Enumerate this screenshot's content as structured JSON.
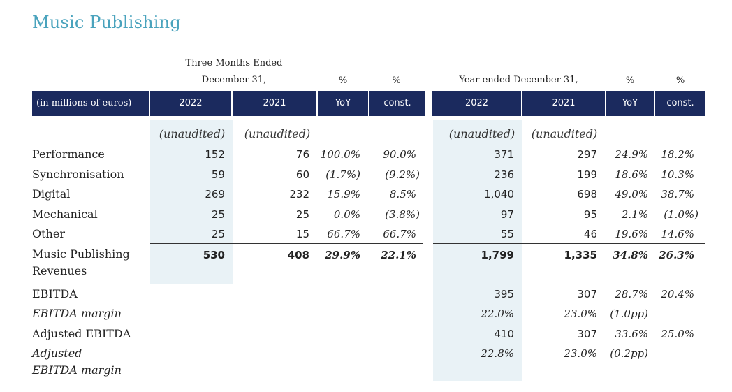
{
  "title": "Music Publishing",
  "header": {
    "three_months_l1": "Three Months Ended",
    "three_months_l2": "December 31,",
    "year_ended": "Year ended December 31,",
    "pct_symbol": "%"
  },
  "band": {
    "unit": "(in millions of euros)",
    "q_2022": "2022",
    "q_2021": "2021",
    "q_yoy": "YoY",
    "q_const": "const.",
    "y_2022": "2022",
    "y_2021": "2021",
    "y_yoy": "YoY",
    "y_const": "const."
  },
  "unaudited": "(unaudited)",
  "rows": [
    {
      "label": "Performance",
      "q22": "152",
      "q21": "76",
      "qyoy": "100.0%",
      "qconst": "90.0%",
      "y22": "371",
      "y21": "297",
      "yyoy": "24.9%",
      "yconst": "18.2%"
    },
    {
      "label": "Synchronisation",
      "q22": "59",
      "q21": "60",
      "qyoy": "(1.7%)",
      "qconst": "(9.2%)",
      "y22": "236",
      "y21": "199",
      "yyoy": "18.6%",
      "yconst": "10.3%"
    },
    {
      "label": "Digital",
      "q22": "269",
      "q21": "232",
      "qyoy": "15.9%",
      "qconst": "8.5%",
      "y22": "1,040",
      "y21": "698",
      "yyoy": "49.0%",
      "yconst": "38.7%"
    },
    {
      "label": "Mechanical",
      "q22": "25",
      "q21": "25",
      "qyoy": "0.0%",
      "qconst": "(3.8%)",
      "y22": "97",
      "y21": "95",
      "yyoy": "2.1%",
      "yconst": "(1.0%)"
    },
    {
      "label": "Other",
      "q22": "25",
      "q21": "15",
      "qyoy": "66.7%",
      "qconst": "66.7%",
      "y22": "55",
      "y21": "46",
      "yyoy": "19.6%",
      "yconst": "14.6%"
    }
  ],
  "total": {
    "label_l1": "Music Publishing",
    "label_l2": "Revenues",
    "q22": "530",
    "q21": "408",
    "qyoy": "29.9%",
    "qconst": "22.1%",
    "y22": "1,799",
    "y21": "1,335",
    "yyoy": "34.8%",
    "yconst": "26.3%"
  },
  "ebitda": {
    "label": "EBITDA",
    "y22": "395",
    "y21": "307",
    "yyoy": "28.7%",
    "yconst": "20.4%"
  },
  "ebitda_margin": {
    "label": "EBITDA margin",
    "y22": "22.0%",
    "y21": "23.0%",
    "yyoy": "(1.0pp)"
  },
  "adj_ebitda": {
    "label": "Adjusted EBITDA",
    "y22": "410",
    "y21": "307",
    "yyoy": "33.6%",
    "yconst": "25.0%"
  },
  "adj_margin": {
    "label_l1": "Adjusted",
    "label_l2": "EBITDA margin",
    "y22": "22.8%",
    "y21": "23.0%",
    "yyoy": "(0.2pp)"
  }
}
